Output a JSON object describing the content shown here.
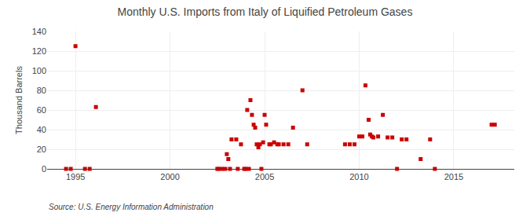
{
  "chart_data": {
    "type": "scatter",
    "title": "Monthly U.S. Imports from Italy of Liquified Petroleum Gases",
    "ylabel": "Thousand Barrels",
    "annotations": [
      "Source: U.S. Energy Information Administration"
    ],
    "color": "#cc0000",
    "marker": "square",
    "grid": true,
    "xlim": [
      1993.5,
      2018.2
    ],
    "ylim": [
      0,
      140
    ],
    "xticks": [
      1995,
      2000,
      2005,
      2010,
      2015
    ],
    "yticks": [
      0,
      20,
      40,
      60,
      80,
      100,
      120,
      140
    ],
    "x": [
      1994.5,
      1994.75,
      1995.0,
      1995.5,
      1995.75,
      1996.08,
      2002.5,
      2002.58,
      2002.75,
      2002.92,
      2003.0,
      2003.08,
      2003.17,
      2003.25,
      2003.5,
      2003.58,
      2003.75,
      2003.92,
      2004.0,
      2004.08,
      2004.17,
      2004.25,
      2004.33,
      2004.42,
      2004.5,
      2004.58,
      2004.67,
      2004.75,
      2004.83,
      2004.92,
      2005.0,
      2005.08,
      2005.25,
      2005.33,
      2005.5,
      2005.67,
      2005.75,
      2006.0,
      2006.25,
      2006.5,
      2007.0,
      2007.25,
      2009.25,
      2009.5,
      2009.75,
      2010.0,
      2010.17,
      2010.33,
      2010.5,
      2010.58,
      2010.67,
      2010.75,
      2011.0,
      2011.25,
      2011.5,
      2011.75,
      2012.0,
      2012.25,
      2012.5,
      2013.25,
      2013.75,
      2014.0,
      2017.0,
      2017.17
    ],
    "values": [
      0,
      0,
      125,
      0,
      0,
      63,
      0,
      0,
      0,
      0,
      15,
      10,
      0,
      30,
      30,
      0,
      25,
      0,
      0,
      60,
      0,
      70,
      55,
      45,
      42,
      25,
      22,
      25,
      0,
      27,
      55,
      45,
      25,
      25,
      27,
      25,
      25,
      25,
      25,
      42,
      80,
      25,
      25,
      25,
      25,
      33,
      33,
      85,
      50,
      35,
      33,
      32,
      33,
      55,
      32,
      32,
      0,
      30,
      30,
      10,
      30,
      0,
      45,
      45
    ]
  }
}
